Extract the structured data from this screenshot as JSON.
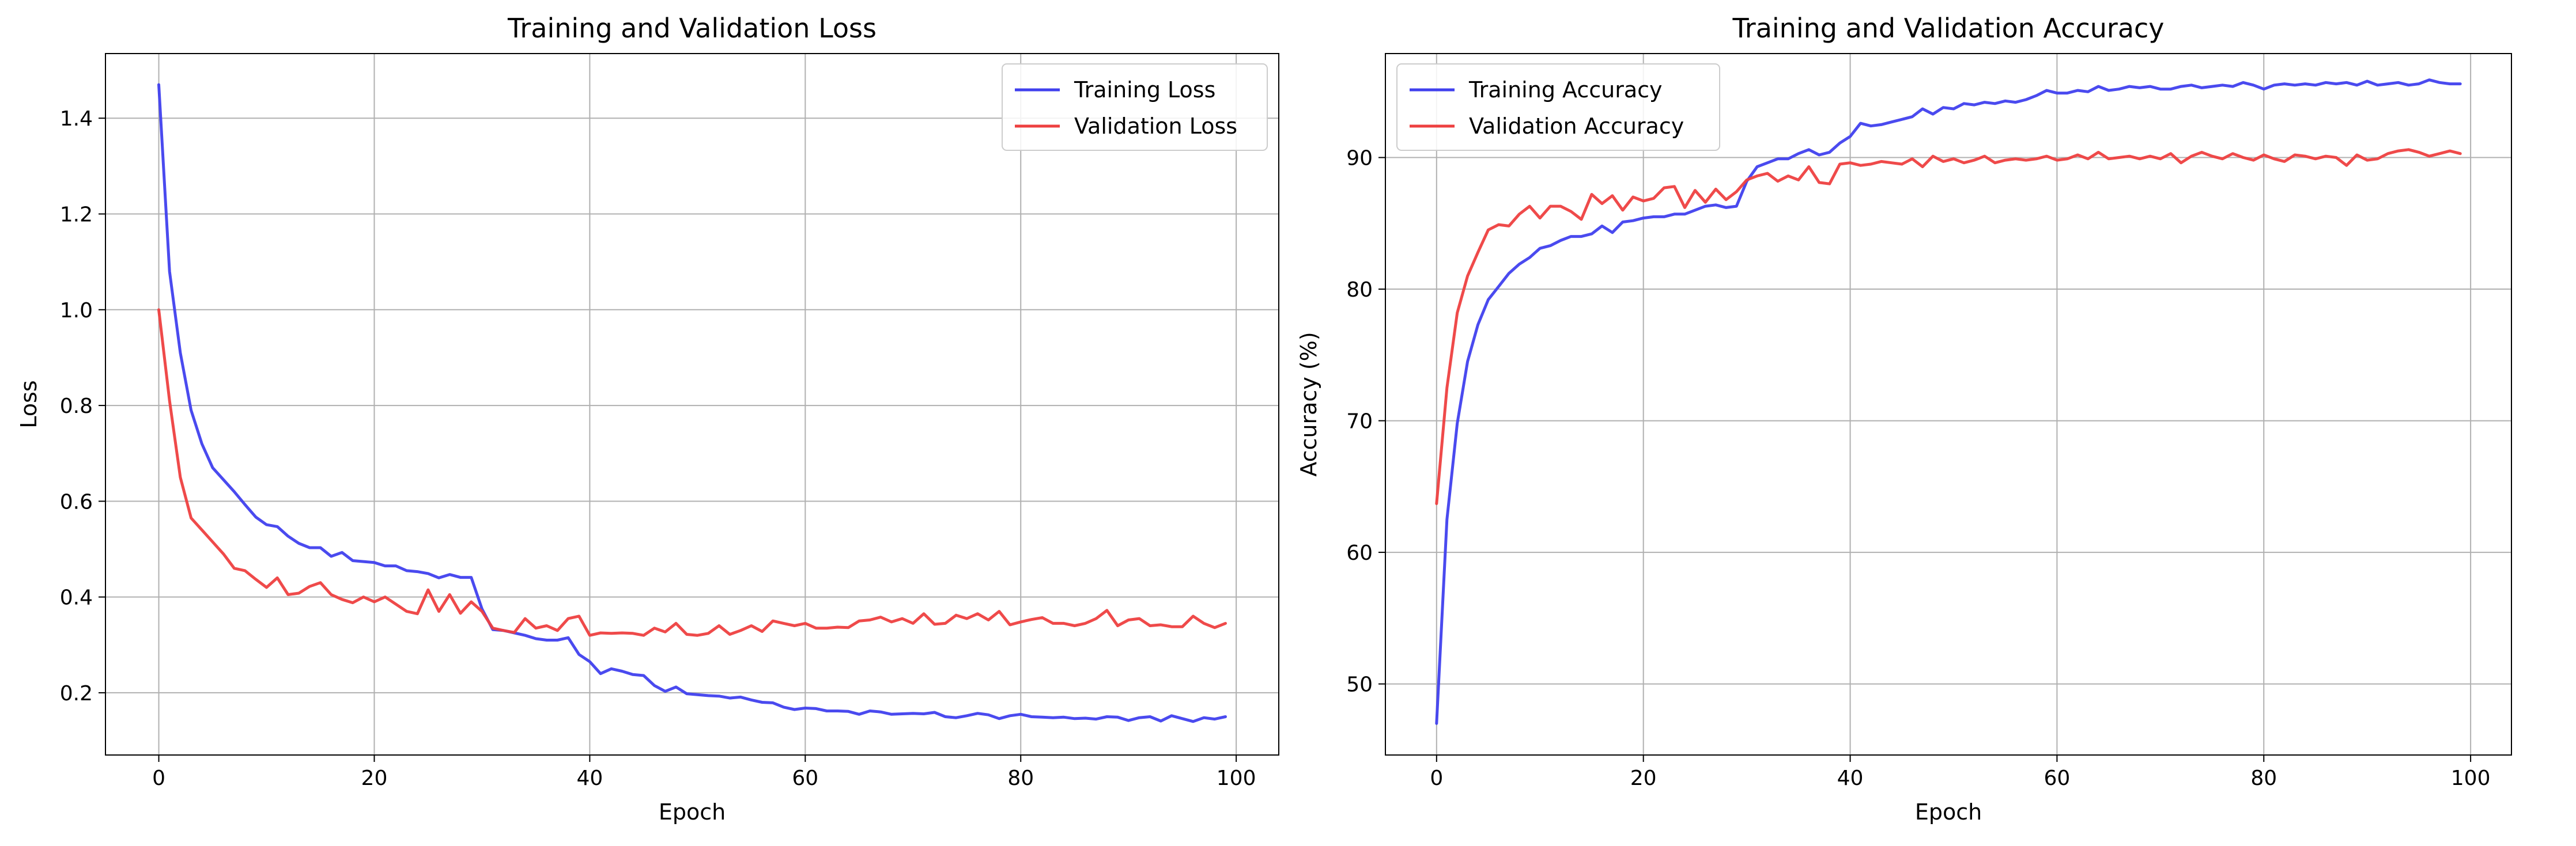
{
  "chart_data": [
    {
      "type": "line",
      "title": "Training and Validation Loss",
      "xlabel": "Epoch",
      "ylabel": "Loss",
      "xlim": [
        -4.95,
        103.95
      ],
      "ylim": [
        0.07,
        1.535
      ],
      "xticks": [
        0,
        20,
        40,
        60,
        80,
        100
      ],
      "yticks": [
        0.2,
        0.4,
        0.6,
        0.8,
        1.0,
        1.2,
        1.4
      ],
      "ytick_labels": [
        "0.2",
        "0.4",
        "0.6",
        "0.8",
        "1.0",
        "1.2",
        "1.4"
      ],
      "grid": true,
      "legend_position": "top-right",
      "series": [
        {
          "name": "Training Loss",
          "color": "#4040ee",
          "values": [
            1.47,
            1.08,
            0.91,
            0.79,
            0.72,
            0.67,
            0.645,
            0.62,
            0.593,
            0.567,
            0.551,
            0.547,
            0.527,
            0.512,
            0.503,
            0.503,
            0.485,
            0.493,
            0.476,
            0.474,
            0.472,
            0.465,
            0.465,
            0.455,
            0.453,
            0.449,
            0.44,
            0.447,
            0.441,
            0.441,
            0.375,
            0.332,
            0.33,
            0.325,
            0.32,
            0.313,
            0.31,
            0.31,
            0.315,
            0.28,
            0.265,
            0.24,
            0.25,
            0.245,
            0.238,
            0.236,
            0.215,
            0.203,
            0.212,
            0.198,
            0.196,
            0.194,
            0.193,
            0.189,
            0.191,
            0.185,
            0.18,
            0.179,
            0.17,
            0.165,
            0.168,
            0.167,
            0.162,
            0.162,
            0.161,
            0.155,
            0.162,
            0.16,
            0.155,
            0.156,
            0.157,
            0.156,
            0.159,
            0.15,
            0.148,
            0.152,
            0.157,
            0.154,
            0.146,
            0.152,
            0.155,
            0.15,
            0.149,
            0.148,
            0.149,
            0.146,
            0.147,
            0.145,
            0.15,
            0.149,
            0.142,
            0.148,
            0.15,
            0.141,
            0.152,
            0.146,
            0.14,
            0.148,
            0.145,
            0.15
          ]
        },
        {
          "name": "Validation Loss",
          "color": "#ee4040",
          "values": [
            1.0,
            0.81,
            0.65,
            0.565,
            0.54,
            0.515,
            0.49,
            0.46,
            0.455,
            0.437,
            0.42,
            0.44,
            0.405,
            0.408,
            0.422,
            0.43,
            0.405,
            0.395,
            0.388,
            0.4,
            0.39,
            0.4,
            0.385,
            0.37,
            0.365,
            0.415,
            0.37,
            0.405,
            0.366,
            0.39,
            0.37,
            0.335,
            0.33,
            0.326,
            0.355,
            0.335,
            0.34,
            0.33,
            0.355,
            0.36,
            0.32,
            0.325,
            0.324,
            0.325,
            0.324,
            0.32,
            0.335,
            0.327,
            0.345,
            0.322,
            0.32,
            0.324,
            0.34,
            0.322,
            0.33,
            0.34,
            0.328,
            0.35,
            0.345,
            0.34,
            0.345,
            0.335,
            0.335,
            0.337,
            0.336,
            0.35,
            0.352,
            0.358,
            0.348,
            0.355,
            0.345,
            0.365,
            0.343,
            0.345,
            0.362,
            0.355,
            0.365,
            0.352,
            0.37,
            0.342,
            0.348,
            0.353,
            0.357,
            0.345,
            0.345,
            0.34,
            0.345,
            0.355,
            0.372,
            0.34,
            0.352,
            0.355,
            0.34,
            0.342,
            0.338,
            0.338,
            0.36,
            0.345,
            0.336,
            0.345
          ]
        }
      ]
    },
    {
      "type": "line",
      "title": "Training and Validation Accuracy",
      "xlabel": "Epoch",
      "ylabel": "Accuracy (%)",
      "xlim": [
        -4.95,
        103.95
      ],
      "ylim": [
        44.6,
        97.9
      ],
      "xticks": [
        0,
        20,
        40,
        60,
        80,
        100
      ],
      "yticks": [
        50,
        60,
        70,
        80,
        90
      ],
      "ytick_labels": [
        "50",
        "60",
        "70",
        "80",
        "90"
      ],
      "grid": true,
      "legend_position": "top-left",
      "series": [
        {
          "name": "Training Accuracy",
          "color": "#4040ee",
          "values": [
            47.0,
            62.5,
            69.8,
            74.5,
            77.3,
            79.2,
            80.2,
            81.2,
            81.9,
            82.4,
            83.1,
            83.3,
            83.7,
            84.0,
            84.0,
            84.2,
            84.8,
            84.3,
            85.1,
            85.2,
            85.4,
            85.5,
            85.5,
            85.7,
            85.7,
            86.0,
            86.3,
            86.4,
            86.2,
            86.3,
            88.2,
            89.3,
            89.6,
            89.9,
            89.9,
            90.3,
            90.6,
            90.2,
            90.4,
            91.1,
            91.6,
            92.6,
            92.4,
            92.5,
            92.7,
            92.9,
            93.1,
            93.7,
            93.3,
            93.8,
            93.7,
            94.1,
            94.0,
            94.2,
            94.1,
            94.3,
            94.2,
            94.4,
            94.7,
            95.1,
            94.9,
            94.9,
            95.1,
            95.0,
            95.4,
            95.1,
            95.2,
            95.4,
            95.3,
            95.4,
            95.2,
            95.2,
            95.4,
            95.5,
            95.3,
            95.4,
            95.5,
            95.4,
            95.7,
            95.5,
            95.2,
            95.5,
            95.6,
            95.5,
            95.6,
            95.5,
            95.7,
            95.6,
            95.7,
            95.5,
            95.8,
            95.5,
            95.6,
            95.7,
            95.5,
            95.6,
            95.9,
            95.7,
            95.6,
            95.6
          ]
        },
        {
          "name": "Validation Accuracy",
          "color": "#ee4040",
          "values": [
            63.7,
            72.5,
            78.2,
            81.0,
            82.8,
            84.5,
            84.9,
            84.8,
            85.7,
            86.3,
            85.4,
            86.3,
            86.3,
            85.9,
            85.3,
            87.2,
            86.5,
            87.1,
            86.0,
            87.0,
            86.7,
            86.9,
            87.7,
            87.8,
            86.2,
            87.5,
            86.6,
            87.6,
            86.8,
            87.4,
            88.3,
            88.6,
            88.8,
            88.2,
            88.6,
            88.3,
            89.3,
            88.1,
            88.0,
            89.5,
            89.6,
            89.4,
            89.5,
            89.7,
            89.6,
            89.5,
            89.9,
            89.3,
            90.1,
            89.7,
            89.9,
            89.6,
            89.8,
            90.1,
            89.6,
            89.8,
            89.9,
            89.8,
            89.9,
            90.1,
            89.8,
            89.9,
            90.2,
            89.9,
            90.4,
            89.9,
            90.0,
            90.1,
            89.9,
            90.1,
            89.9,
            90.3,
            89.6,
            90.1,
            90.4,
            90.1,
            89.9,
            90.3,
            90.0,
            89.8,
            90.2,
            89.9,
            89.7,
            90.2,
            90.1,
            89.9,
            90.1,
            90.0,
            89.4,
            90.2,
            89.8,
            89.9,
            90.3,
            90.5,
            90.6,
            90.4,
            90.1,
            90.3,
            90.5,
            90.3
          ]
        }
      ]
    }
  ]
}
